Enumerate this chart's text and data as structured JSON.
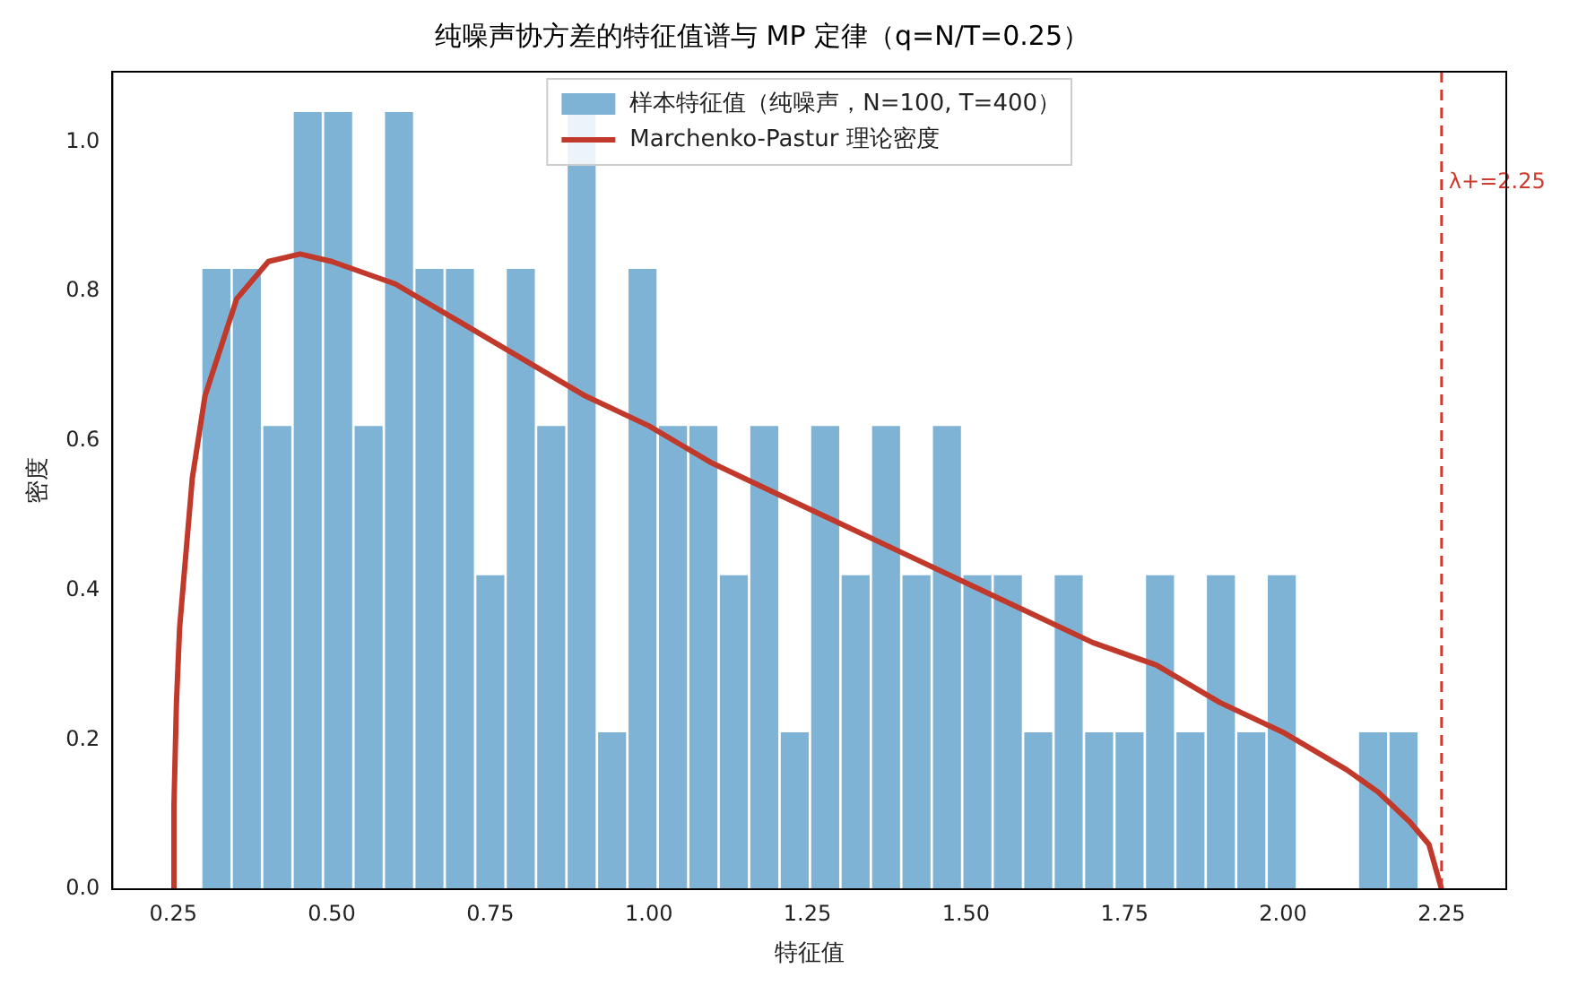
{
  "chart_data": {
    "type": "histogram",
    "title": "纯噪声协方差的特征值谱与 MP 定律（q=N/T=0.25）",
    "xlabel": "特征值",
    "ylabel": "密度",
    "series": [
      {
        "name": "样本特征值（纯噪声，N=100, T=400）",
        "color": "#7fb3d5",
        "bins": [
          0.294,
          0.342,
          0.39,
          0.438,
          0.486,
          0.534,
          0.582,
          0.63,
          0.678,
          0.726,
          0.774,
          0.822,
          0.87,
          0.918,
          0.966,
          1.014,
          1.062,
          1.11,
          1.158,
          1.206,
          1.254,
          1.302,
          1.35,
          1.398,
          1.446,
          1.494,
          1.542,
          1.59,
          1.638,
          1.686,
          1.734,
          1.782,
          1.83,
          1.878,
          1.926,
          1.974,
          2.022,
          2.07,
          2.118,
          2.166,
          2.214
        ],
        "values": [
          0.83,
          0.83,
          0.62,
          1.04,
          1.04,
          0.62,
          1.04,
          0.83,
          0.83,
          0.42,
          0.83,
          0.62,
          1.04,
          0.21,
          0.83,
          0.62,
          0.62,
          0.42,
          0.62,
          0.21,
          0.62,
          0.42,
          0.62,
          0.42,
          0.62,
          0.42,
          0.42,
          0.21,
          0.42,
          0.21,
          0.21,
          0.42,
          0.21,
          0.42,
          0.21,
          0.42,
          0,
          0,
          0.21,
          0.21
        ]
      },
      {
        "type": "line",
        "name": "Marchenko-Pastur 理论密度",
        "color": "#c0392b",
        "x": [
          0.25,
          0.251,
          0.255,
          0.26,
          0.28,
          0.3,
          0.35,
          0.4,
          0.45,
          0.5,
          0.6,
          0.7,
          0.8,
          0.9,
          1.0,
          1.1,
          1.2,
          1.3,
          1.4,
          1.5,
          1.6,
          1.7,
          1.8,
          1.9,
          2.0,
          2.1,
          2.15,
          2.2,
          2.23,
          2.25
        ],
        "values": [
          0,
          0.11,
          0.25,
          0.35,
          0.55,
          0.66,
          0.79,
          0.84,
          0.85,
          0.84,
          0.81,
          0.76,
          0.71,
          0.66,
          0.62,
          0.57,
          0.53,
          0.49,
          0.45,
          0.41,
          0.37,
          0.33,
          0.3,
          0.25,
          0.21,
          0.16,
          0.13,
          0.09,
          0.06,
          0
        ]
      }
    ],
    "ref_lines": [
      {
        "axis": "x",
        "value": 2.25,
        "label": "λ+=2.25",
        "color": "#d03a2f",
        "line_style": "dashed"
      }
    ],
    "xlim": [
      0.154,
      2.352
    ],
    "ylim": [
      0,
      1.094
    ],
    "xticks": [
      {
        "value": 0.25,
        "label": "0.25"
      },
      {
        "value": 0.5,
        "label": "0.50"
      },
      {
        "value": 0.75,
        "label": "0.75"
      },
      {
        "value": 1,
        "label": "1.00"
      },
      {
        "value": 1.25,
        "label": "1.25"
      },
      {
        "value": 1.5,
        "label": "1.50"
      },
      {
        "value": 1.75,
        "label": "1.75"
      },
      {
        "value": 2,
        "label": "2.00"
      },
      {
        "value": 2.25,
        "label": "2.25"
      }
    ],
    "yticks": [
      {
        "value": 0,
        "label": "0.0"
      },
      {
        "value": 0.2,
        "label": "0.2"
      },
      {
        "value": 0.4,
        "label": "0.4"
      },
      {
        "value": 0.6,
        "label": "0.6"
      },
      {
        "value": 0.8,
        "label": "0.8"
      },
      {
        "value": 1,
        "label": "1.0"
      }
    ],
    "legend": "top",
    "grid": false
  }
}
